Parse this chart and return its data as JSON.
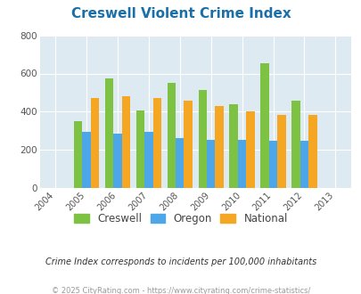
{
  "title": "Creswell Violent Crime Index",
  "years": [
    2004,
    2005,
    2006,
    2007,
    2008,
    2009,
    2010,
    2011,
    2012,
    2013
  ],
  "data_years": [
    2005,
    2006,
    2007,
    2008,
    2009,
    2010,
    2011,
    2012
  ],
  "creswell": [
    350,
    575,
    405,
    550,
    515,
    440,
    655,
    460
  ],
  "oregon": [
    295,
    285,
    295,
    260,
    255,
    255,
    250,
    250
  ],
  "national": [
    470,
    480,
    470,
    460,
    430,
    400,
    385,
    385
  ],
  "color_creswell": "#7dc242",
  "color_oregon": "#4da6e8",
  "color_national": "#f5a623",
  "bg_color": "#deeaf1",
  "ylim": [
    0,
    800
  ],
  "yticks": [
    0,
    200,
    400,
    600,
    800
  ],
  "title_color": "#1a6fa8",
  "title_fontsize": 11,
  "bar_width": 0.27,
  "subtitle": "Crime Index corresponds to incidents per 100,000 inhabitants",
  "footer": "© 2025 CityRating.com - https://www.cityrating.com/crime-statistics/",
  "legend_labels": [
    "Creswell",
    "Oregon",
    "National"
  ]
}
